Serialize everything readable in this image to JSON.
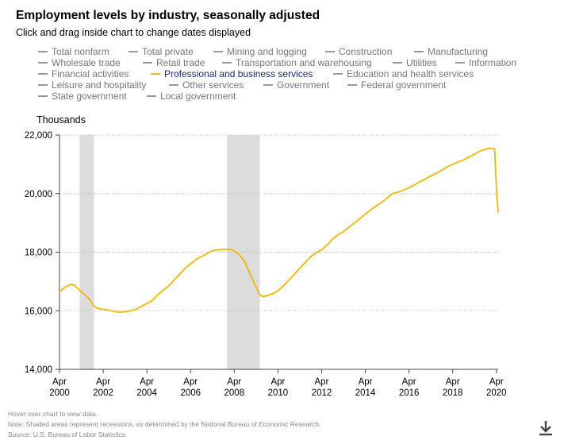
{
  "header": {
    "title": "Employment levels by industry, seasonally adjusted",
    "subtitle": "Click and drag inside chart to change dates displayed"
  },
  "legend": {
    "items": [
      {
        "label": "Total nonfarm",
        "active": false
      },
      {
        "label": "Total private",
        "active": false
      },
      {
        "label": "Mining and logging",
        "active": false
      },
      {
        "label": "Construction",
        "active": false
      },
      {
        "label": "Manufacturing",
        "active": false
      },
      {
        "label": "Wholesale trade",
        "active": false
      },
      {
        "label": "Retail trade",
        "active": false
      },
      {
        "label": "Transportation and warehousing",
        "active": false
      },
      {
        "label": "Utilities",
        "active": false
      },
      {
        "label": "Information",
        "active": false
      },
      {
        "label": "Financial activities",
        "active": false
      },
      {
        "label": "Professional and business services",
        "active": true
      },
      {
        "label": "Education and health services",
        "active": false
      },
      {
        "label": "Leisure and hospitality",
        "active": false
      },
      {
        "label": "Other services",
        "active": false
      },
      {
        "label": "Government",
        "active": false
      },
      {
        "label": "Federal government",
        "active": false
      },
      {
        "label": "State government",
        "active": false
      },
      {
        "label": "Local government",
        "active": false
      }
    ]
  },
  "notes": {
    "hover": "Hover over chart to view data.",
    "recession": "Note: Shaded areas represent recessions, as determined by the National Bureau of Economic Research.",
    "source": "Source: U.S. Bureau of Labor Statistics."
  },
  "colors": {
    "series": "#f2b705",
    "recession": "#dcdcdc",
    "active_legend_text": "#1a2a80",
    "legend_text": "#777777"
  },
  "icons": {
    "download": "download-icon"
  },
  "chart_data": {
    "type": "line",
    "title": "Employment levels by industry, seasonally adjusted",
    "ylabel": "Thousands",
    "xlabel": "",
    "xlim": [
      2000.25,
      2020.33
    ],
    "ylim": [
      14000,
      22000
    ],
    "yticks": [
      14000,
      16000,
      18000,
      20000,
      22000
    ],
    "ytick_labels": [
      "14,000",
      "16,000",
      "18,000",
      "20,000",
      "22,000"
    ],
    "xticks": [
      2000.25,
      2002.25,
      2004.25,
      2006.25,
      2008.25,
      2010.25,
      2012.25,
      2014.25,
      2016.25,
      2018.25,
      2020.25
    ],
    "xtick_labels": [
      [
        "Apr",
        "2000"
      ],
      [
        "Apr",
        "2002"
      ],
      [
        "Apr",
        "2004"
      ],
      [
        "Apr",
        "2006"
      ],
      [
        "Apr",
        "2008"
      ],
      [
        "Apr",
        "2010"
      ],
      [
        "Apr",
        "2012"
      ],
      [
        "Apr",
        "2014"
      ],
      [
        "Apr",
        "2016"
      ],
      [
        "Apr",
        "2018"
      ],
      [
        "Apr",
        "2020"
      ]
    ],
    "grid": true,
    "recessions": [
      [
        2001.17,
        2001.83
      ],
      [
        2007.92,
        2009.42
      ]
    ],
    "series": [
      {
        "name": "Professional and business services",
        "x": [
          2000.25,
          2000.5,
          2000.75,
          2000.92,
          2001.17,
          2001.42,
          2001.67,
          2001.83,
          2002.0,
          2002.25,
          2002.5,
          2002.75,
          2003.0,
          2003.25,
          2003.5,
          2003.75,
          2004.0,
          2004.25,
          2004.5,
          2004.75,
          2005.0,
          2005.25,
          2005.5,
          2005.75,
          2006.0,
          2006.25,
          2006.5,
          2006.75,
          2007.0,
          2007.25,
          2007.5,
          2007.75,
          2008.0,
          2008.25,
          2008.5,
          2008.75,
          2009.0,
          2009.25,
          2009.42,
          2009.58,
          2009.75,
          2010.0,
          2010.25,
          2010.5,
          2010.75,
          2011.0,
          2011.25,
          2011.5,
          2011.75,
          2012.0,
          2012.25,
          2012.5,
          2012.75,
          2013.0,
          2013.25,
          2013.5,
          2013.75,
          2014.0,
          2014.25,
          2014.5,
          2014.75,
          2015.0,
          2015.25,
          2015.5,
          2015.75,
          2016.0,
          2016.25,
          2016.5,
          2016.75,
          2017.0,
          2017.25,
          2017.5,
          2017.75,
          2018.0,
          2018.25,
          2018.5,
          2018.75,
          2019.0,
          2019.25,
          2019.5,
          2019.75,
          2020.0,
          2020.17,
          2020.25,
          2020.33
        ],
        "y": [
          16650,
          16800,
          16900,
          16880,
          16700,
          16550,
          16350,
          16150,
          16080,
          16050,
          16020,
          15980,
          15950,
          15970,
          16000,
          16050,
          16150,
          16250,
          16350,
          16550,
          16700,
          16850,
          17050,
          17250,
          17450,
          17600,
          17750,
          17850,
          17950,
          18050,
          18080,
          18100,
          18100,
          18050,
          17900,
          17650,
          17200,
          16800,
          16550,
          16480,
          16520,
          16580,
          16680,
          16850,
          17050,
          17250,
          17450,
          17650,
          17850,
          17980,
          18080,
          18250,
          18450,
          18600,
          18700,
          18850,
          19000,
          19150,
          19300,
          19450,
          19580,
          19700,
          19850,
          20000,
          20050,
          20120,
          20200,
          20300,
          20400,
          20500,
          20600,
          20700,
          20800,
          20920,
          21000,
          21080,
          21150,
          21250,
          21350,
          21450,
          21520,
          21550,
          21520,
          20200,
          19350
        ]
      }
    ]
  }
}
